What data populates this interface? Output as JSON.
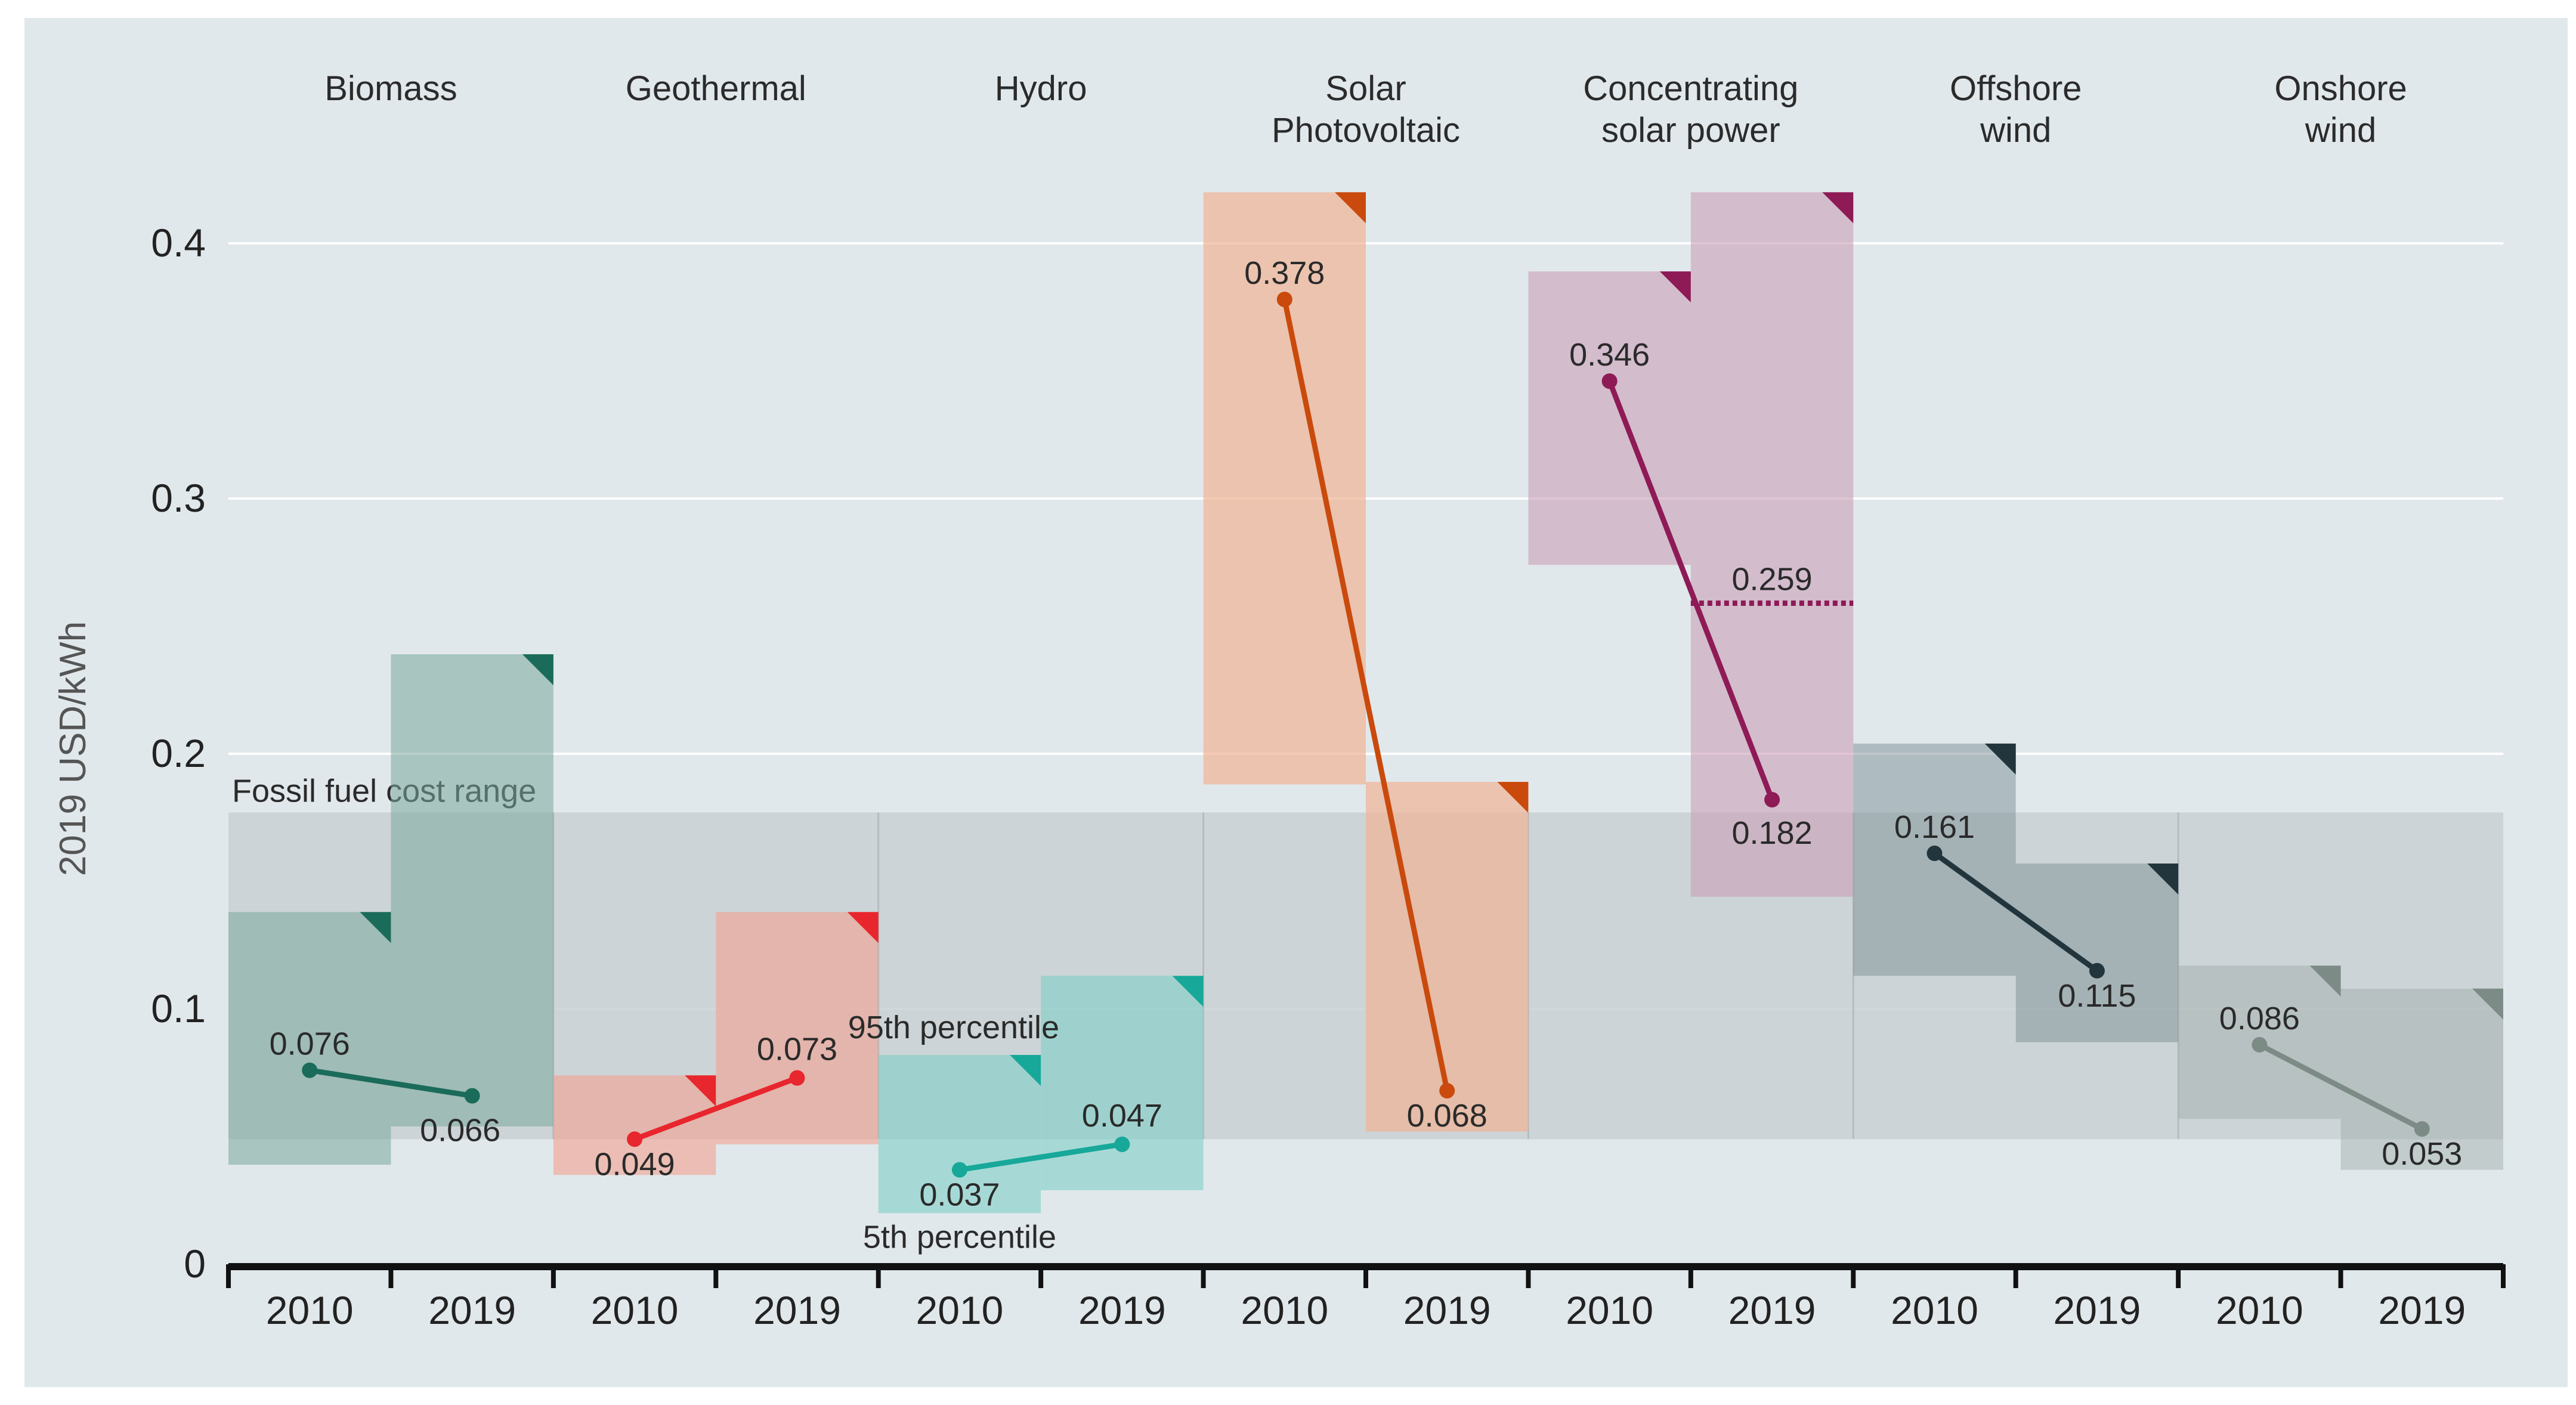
{
  "chart_data": {
    "type": "range-bar-slope",
    "ylabel": "2019 USD/kWh",
    "ylim": [
      0,
      0.42
    ],
    "yticks": [
      {
        "value": 0,
        "label": "0"
      },
      {
        "value": 0.1,
        "label": "0.1"
      },
      {
        "value": 0.2,
        "label": "0.2"
      },
      {
        "value": 0.3,
        "label": "0.3"
      },
      {
        "value": 0.4,
        "label": "0.4"
      }
    ],
    "fossil_range": {
      "label": "Fossil fuel cost range",
      "low": 0.049,
      "high": 0.177,
      "color": "#c9d0d4"
    },
    "annotations": {
      "p95": "95th percentile",
      "p5": "5th percentile"
    },
    "series": [
      {
        "name": "Biomass",
        "color": "#1b6b5a",
        "box": "#7aa89d",
        "boxOpacity": 0.55,
        "points": [
          {
            "year": "2010",
            "value": 0.076,
            "label": "0.076",
            "p5": 0.039,
            "p95": 0.138
          },
          {
            "year": "2019",
            "value": 0.066,
            "label": "0.066",
            "p5": 0.054,
            "p95": 0.239
          }
        ]
      },
      {
        "name": "Geothermal",
        "color": "#e8262d",
        "box": "#f2a08f",
        "boxOpacity": 0.6,
        "points": [
          {
            "year": "2010",
            "value": 0.049,
            "label": "0.049",
            "p5": 0.035,
            "p95": 0.074
          },
          {
            "year": "2019",
            "value": 0.073,
            "label": "0.073",
            "p5": 0.047,
            "p95": 0.138
          }
        ]
      },
      {
        "name": "Hydro",
        "color": "#17a89a",
        "box": "#7fcfc6",
        "boxOpacity": 0.6,
        "points": [
          {
            "year": "2010",
            "value": 0.037,
            "label": "0.037",
            "p5": 0.02,
            "p95": 0.082
          },
          {
            "year": "2019",
            "value": 0.047,
            "label": "0.047",
            "p5": 0.029,
            "p95": 0.113
          }
        ]
      },
      {
        "name": "Solar Photovoltaic",
        "color": "#c94a0c",
        "box": "#f0b394",
        "boxOpacity": 0.7,
        "points": [
          {
            "year": "2010",
            "value": 0.378,
            "label": "0.378",
            "p5": 0.188,
            "p95": 0.42
          },
          {
            "year": "2019",
            "value": 0.068,
            "label": "0.068",
            "p5": 0.052,
            "p95": 0.189
          }
        ]
      },
      {
        "name": "Concentrating solar power",
        "color": "#8e1a56",
        "box": "#c99fb7",
        "boxOpacity": 0.6,
        "auction": {
          "value": 0.259,
          "label": "0.259"
        },
        "points": [
          {
            "year": "2010",
            "value": 0.346,
            "label": "0.346",
            "p5": 0.274,
            "p95": 0.389
          },
          {
            "year": "2019",
            "value": 0.182,
            "label": "0.182",
            "p5": 0.144,
            "p95": 0.42
          }
        ]
      },
      {
        "name": "Offshore wind",
        "color": "#22353d",
        "box": "#7c8f95",
        "boxOpacity": 0.5,
        "points": [
          {
            "year": "2010",
            "value": 0.161,
            "label": "0.161",
            "p5": 0.113,
            "p95": 0.204
          },
          {
            "year": "2019",
            "value": 0.115,
            "label": "0.115",
            "p5": 0.087,
            "p95": 0.157
          }
        ]
      },
      {
        "name": "Onshore wind",
        "color": "#7c8b86",
        "box": "#9faba7",
        "boxOpacity": 0.45,
        "points": [
          {
            "year": "2010",
            "value": 0.086,
            "label": "0.086",
            "p5": 0.057,
            "p95": 0.117
          },
          {
            "year": "2019",
            "value": 0.053,
            "label": "0.053",
            "p5": 0.037,
            "p95": 0.108
          }
        ]
      }
    ]
  }
}
